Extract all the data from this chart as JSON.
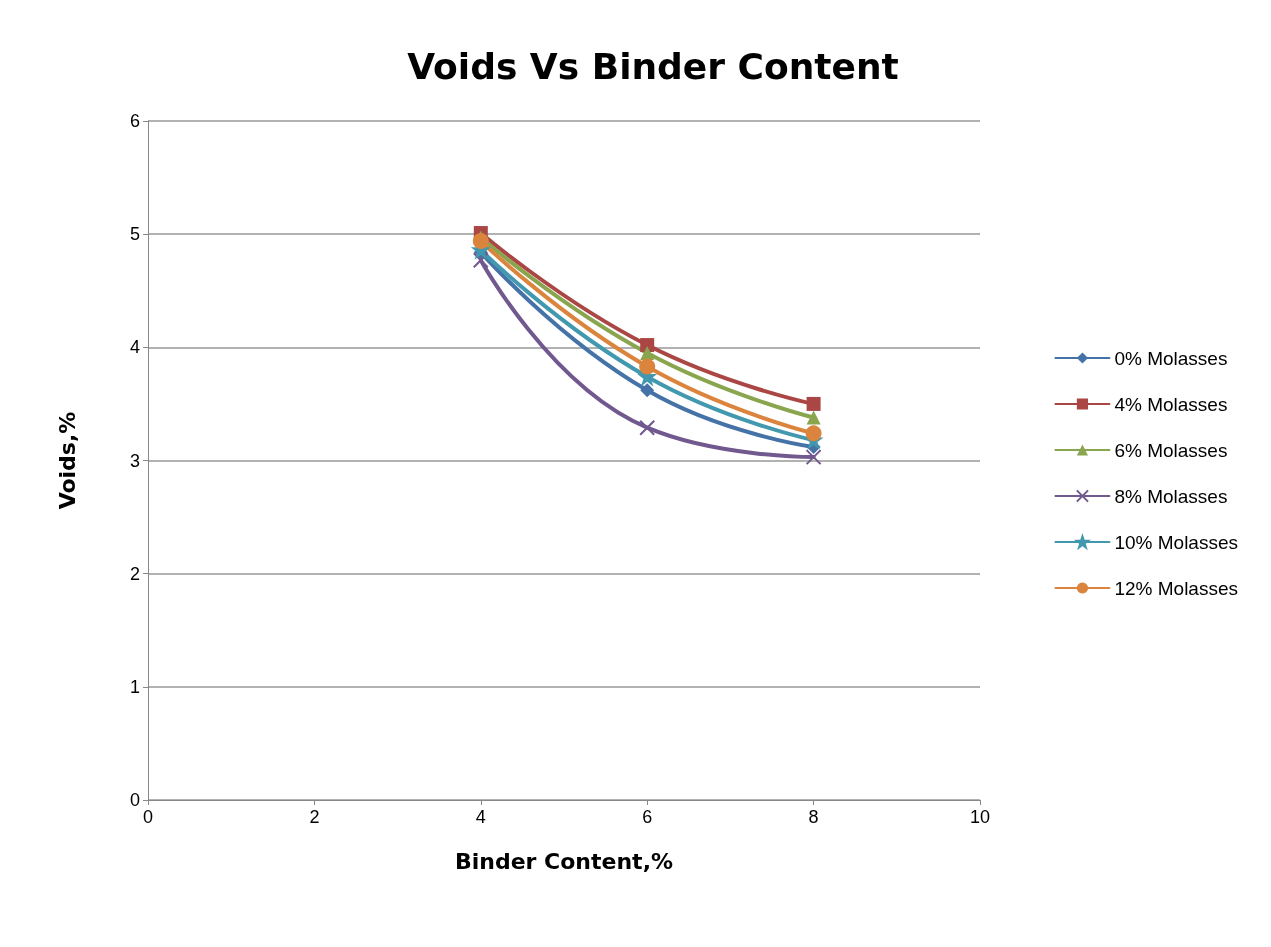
{
  "chart_data": {
    "type": "line",
    "title": "Voids Vs Binder Content",
    "xlabel": "Binder Content,%",
    "ylabel": "Voids,%",
    "x": [
      4,
      6,
      8
    ],
    "series": [
      {
        "name": "0% Molasses",
        "color": "#4572a7",
        "marker": "diamond",
        "values": [
          4.84,
          3.62,
          3.12
        ]
      },
      {
        "name": "4% Molasses",
        "color": "#aa4643",
        "marker": "square",
        "values": [
          5.01,
          4.02,
          3.5
        ]
      },
      {
        "name": "6% Molasses",
        "color": "#89a54e",
        "marker": "triangle",
        "values": [
          4.97,
          3.95,
          3.38
        ]
      },
      {
        "name": "8% Molasses",
        "color": "#71588f",
        "marker": "cross",
        "values": [
          4.77,
          3.29,
          3.03
        ]
      },
      {
        "name": "10% Molasses",
        "color": "#4198af",
        "marker": "star",
        "values": [
          4.86,
          3.74,
          3.18
        ]
      },
      {
        "name": "12% Molasses",
        "color": "#db843d",
        "marker": "circle",
        "values": [
          4.94,
          3.83,
          3.24
        ]
      }
    ],
    "xlim": [
      0,
      10
    ],
    "xticks": [
      0,
      2,
      4,
      6,
      8,
      10
    ],
    "ylim": [
      0,
      6
    ],
    "yticks": [
      0,
      1,
      2,
      3,
      4,
      5,
      6
    ],
    "grid": "y",
    "legend": "right",
    "line_style": "solid"
  }
}
